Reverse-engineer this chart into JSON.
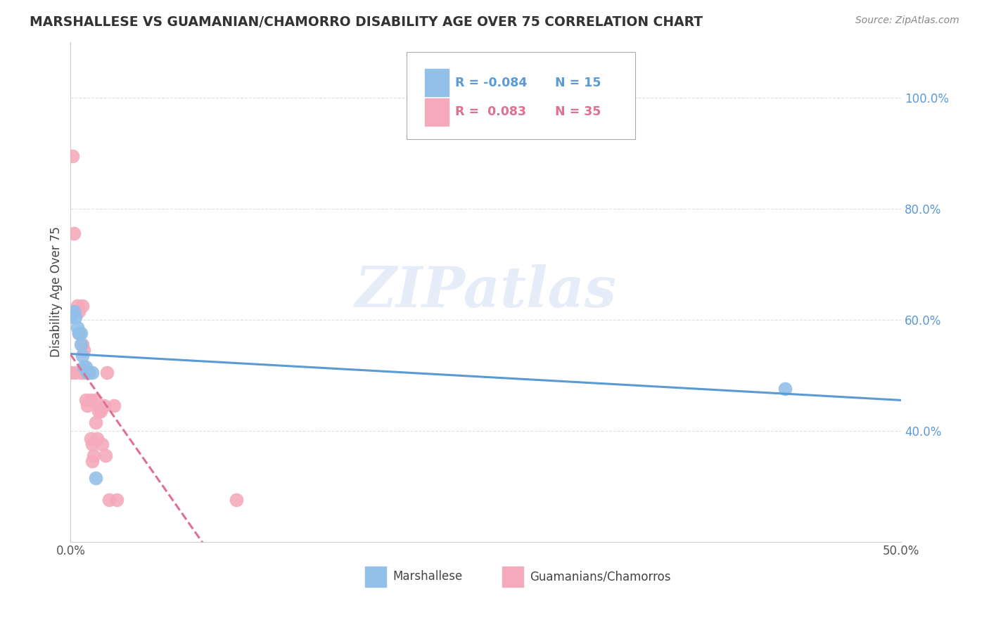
{
  "title": "MARSHALLESE VS GUAMANIAN/CHAMORRO DISABILITY AGE OVER 75 CORRELATION CHART",
  "source": "Source: ZipAtlas.com",
  "ylabel": "Disability Age Over 75",
  "watermark": "ZIPatlas",
  "xlim": [
    0.0,
    0.5
  ],
  "ylim": [
    0.2,
    1.1
  ],
  "yticks": [
    0.4,
    0.6,
    0.8,
    1.0
  ],
  "ytick_labels": [
    "40.0%",
    "60.0%",
    "80.0%",
    "100.0%"
  ],
  "xticks": [
    0.0,
    0.5
  ],
  "xtick_labels": [
    "0.0%",
    "50.0%"
  ],
  "blue_color": "#92C0E8",
  "pink_color": "#F4AABB",
  "blue_line_color": "#5B9BD5",
  "pink_line_color": "#E07090",
  "background_color": "#FFFFFF",
  "grid_color": "#E0E0E0",
  "marshallese_x": [
    0.0,
    0.002,
    0.003,
    0.004,
    0.005,
    0.006,
    0.006,
    0.007,
    0.008,
    0.009,
    0.01,
    0.011,
    0.013,
    0.015,
    0.43
  ],
  "marshallese_y": [
    0.605,
    0.615,
    0.605,
    0.585,
    0.575,
    0.575,
    0.555,
    0.535,
    0.515,
    0.515,
    0.505,
    0.505,
    0.505,
    0.315,
    0.475
  ],
  "guamanian_x": [
    0.0,
    0.001,
    0.002,
    0.003,
    0.004,
    0.005,
    0.005,
    0.006,
    0.007,
    0.007,
    0.008,
    0.008,
    0.009,
    0.01,
    0.01,
    0.01,
    0.011,
    0.012,
    0.012,
    0.013,
    0.013,
    0.014,
    0.015,
    0.015,
    0.016,
    0.017,
    0.018,
    0.019,
    0.02,
    0.021,
    0.022,
    0.023,
    0.026,
    0.028,
    0.1
  ],
  "guamanian_y": [
    0.505,
    0.895,
    0.755,
    0.505,
    0.625,
    0.615,
    0.575,
    0.505,
    0.625,
    0.555,
    0.545,
    0.505,
    0.455,
    0.445,
    0.505,
    0.505,
    0.505,
    0.455,
    0.385,
    0.375,
    0.345,
    0.355,
    0.455,
    0.415,
    0.385,
    0.435,
    0.435,
    0.375,
    0.445,
    0.355,
    0.505,
    0.275,
    0.445,
    0.275,
    0.275
  ]
}
